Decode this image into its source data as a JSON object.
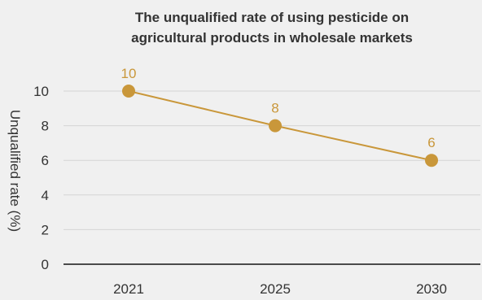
{
  "chart_data": {
    "type": "line",
    "title_lines": [
      "The unqualified rate of using pesticide on",
      "agricultural products in wholesale markets"
    ],
    "xlabel": "",
    "ylabel": "Unqualified rate (%)",
    "x": [
      "2021",
      "2025",
      "2030"
    ],
    "series": [
      {
        "values": [
          10,
          8,
          6
        ]
      }
    ],
    "ylim": [
      0,
      10
    ],
    "yticks": [
      "0",
      "2",
      "4",
      "6",
      "8",
      "10"
    ],
    "grid": "horizontal",
    "legend": "none"
  },
  "colors": {
    "background": "#f0f0f0",
    "series": "#c9973a",
    "grid": "#d4d4d4",
    "axis": "#4a4a4a",
    "text": "#333333"
  }
}
